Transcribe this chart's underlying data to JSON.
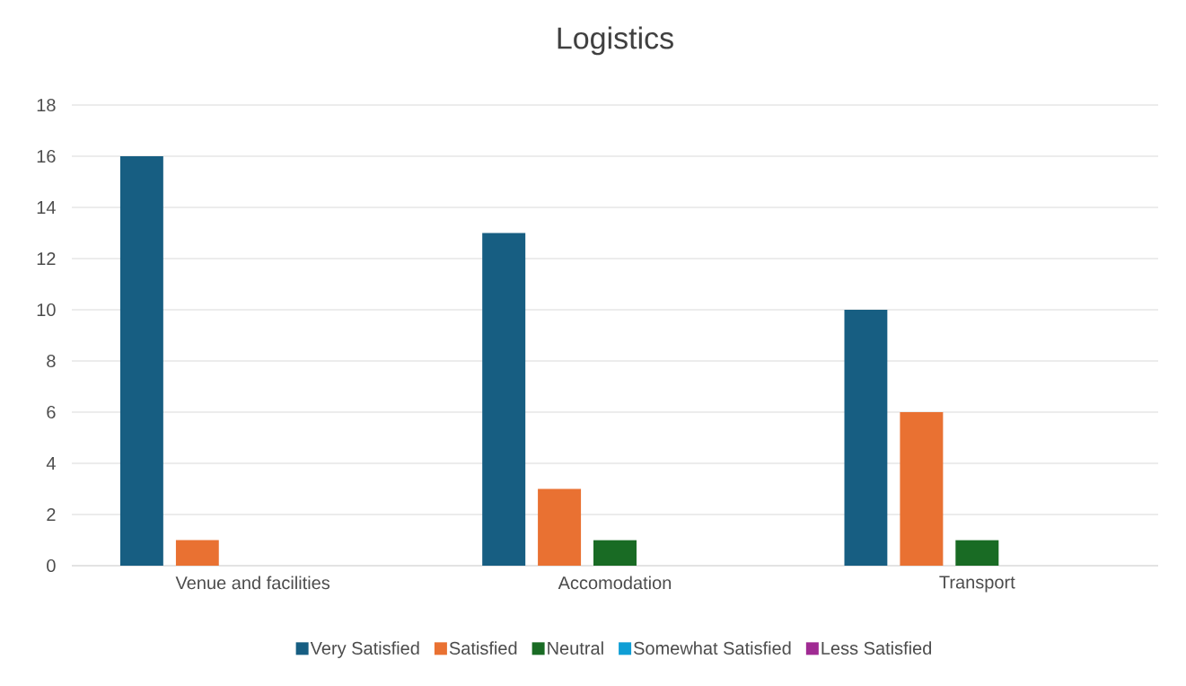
{
  "chart_data": {
    "type": "bar",
    "title": "Logistics",
    "categories": [
      "Venue and facilities",
      "Accomodation",
      "Transport"
    ],
    "series": [
      {
        "name": "Very Satisfied",
        "color": "#175e82",
        "values": [
          16,
          13,
          10
        ]
      },
      {
        "name": "Satisfied",
        "color": "#e97132",
        "values": [
          1,
          3,
          6
        ]
      },
      {
        "name": "Neutral",
        "color": "#196b24",
        "values": [
          0,
          1,
          1
        ]
      },
      {
        "name": "Somewhat Satisfied",
        "color": "#0f9ed5",
        "values": [
          0,
          0,
          0
        ]
      },
      {
        "name": "Less Satisfied",
        "color": "#a02b93",
        "values": [
          0,
          0,
          0
        ]
      }
    ],
    "ylim": [
      0,
      18
    ],
    "yticks": [
      0,
      2,
      4,
      6,
      8,
      10,
      12,
      14,
      16,
      18
    ],
    "grid": "y",
    "legend": "bottom"
  }
}
